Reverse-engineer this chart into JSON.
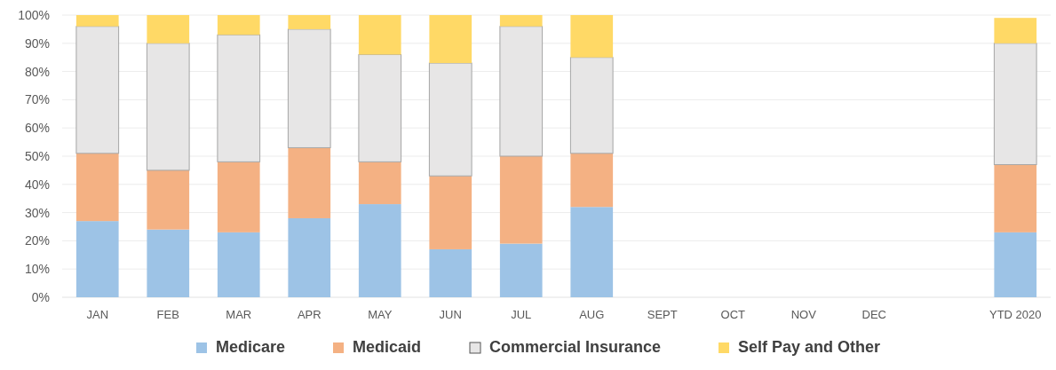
{
  "chart_data": {
    "type": "bar",
    "stacked": true,
    "categories": [
      "JAN",
      "FEB",
      "MAR",
      "APR",
      "MAY",
      "JUN",
      "JUL",
      "AUG",
      "SEPT",
      "OCT",
      "NOV",
      "DEC",
      null,
      "YTD 2020"
    ],
    "series": [
      {
        "name": "Medicare",
        "color": "#9dc3e6",
        "values": [
          27,
          24,
          23,
          28,
          33,
          17,
          19,
          32,
          null,
          null,
          null,
          null,
          null,
          23
        ]
      },
      {
        "name": "Medicaid",
        "color": "#f4b183",
        "values": [
          24,
          21,
          25,
          25,
          15,
          26,
          31,
          19,
          null,
          null,
          null,
          null,
          null,
          24
        ]
      },
      {
        "name": "Commercial Insurance",
        "color": "#e7e6e6",
        "values": [
          45,
          45,
          45,
          42,
          38,
          40,
          46,
          34,
          null,
          null,
          null,
          null,
          null,
          43
        ]
      },
      {
        "name": "Self Pay and Other",
        "color": "#ffd966",
        "values": [
          4,
          10,
          7,
          5,
          14,
          17,
          4,
          15,
          null,
          null,
          null,
          null,
          null,
          9
        ]
      }
    ],
    "ylim": [
      0,
      100
    ],
    "yticks": [
      {
        "value": 0,
        "label": "0%"
      },
      {
        "value": 10,
        "label": "10%"
      },
      {
        "value": 20,
        "label": "20%"
      },
      {
        "value": 30,
        "label": "30%"
      },
      {
        "value": 40,
        "label": "40%"
      },
      {
        "value": 50,
        "label": "50%"
      },
      {
        "value": 60,
        "label": "60%"
      },
      {
        "value": 70,
        "label": "70%"
      },
      {
        "value": 80,
        "label": "80%"
      },
      {
        "value": 90,
        "label": "90%"
      },
      {
        "value": 100,
        "label": "100%"
      }
    ],
    "grid": "y",
    "legend": "bottom"
  }
}
